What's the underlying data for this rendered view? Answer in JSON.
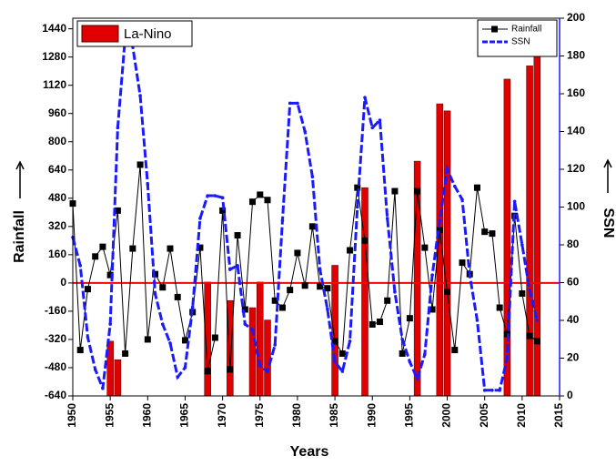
{
  "chart_data": {
    "type": "combo",
    "xlabel": "Years",
    "ylabel": "Rainfall",
    "y2label": "SSN",
    "x": [
      1950,
      1951,
      1952,
      1953,
      1954,
      1955,
      1956,
      1957,
      1958,
      1959,
      1960,
      1961,
      1962,
      1963,
      1964,
      1965,
      1966,
      1967,
      1968,
      1969,
      1970,
      1971,
      1972,
      1973,
      1974,
      1975,
      1976,
      1977,
      1978,
      1979,
      1980,
      1981,
      1982,
      1983,
      1984,
      1985,
      1986,
      1987,
      1988,
      1989,
      1990,
      1991,
      1992,
      1993,
      1994,
      1995,
      1996,
      1997,
      1998,
      1999,
      2000,
      2001,
      2002,
      2003,
      2004,
      2005,
      2006,
      2007,
      2008,
      2009,
      2010,
      2011,
      2012
    ],
    "series": [
      {
        "name": "La-Nino",
        "type": "bar",
        "color": "#e00000",
        "x": [
          1955,
          1956,
          1968,
          1971,
          1974,
          1975,
          1976,
          1985,
          1989,
          1996,
          1999,
          2000,
          2008,
          2011,
          2012
        ],
        "values": [
          -330,
          -435,
          5,
          -100,
          -140,
          5,
          -210,
          100,
          540,
          690,
          1015,
          975,
          1155,
          1230,
          1300
        ]
      },
      {
        "name": "Rainfall",
        "type": "line",
        "color": "#000000",
        "marker": "square",
        "values": [
          450,
          -380,
          -35,
          150,
          205,
          45,
          410,
          -400,
          195,
          670,
          -320,
          50,
          -25,
          195,
          -80,
          -325,
          -165,
          200,
          -500,
          -310,
          410,
          -490,
          270,
          -150,
          460,
          500,
          470,
          -100,
          -140,
          -40,
          170,
          -15,
          320,
          -20,
          -30,
          -330,
          -400,
          185,
          540,
          240,
          -235,
          -220,
          -100,
          520,
          -400,
          -200,
          520,
          200,
          -150,
          300,
          -50,
          -380,
          115,
          50,
          540,
          290,
          280,
          -140,
          -290,
          380,
          -60,
          -300,
          -330
        ]
      },
      {
        "name": "SSN",
        "type": "line",
        "color": "#1a1aff",
        "marker": "dot",
        "axis": "y2",
        "values": [
          84,
          69,
          31,
          14,
          4,
          38,
          142,
          190,
          185,
          159,
          112,
          54,
          38,
          28,
          10,
          15,
          47,
          94,
          106,
          106,
          105,
          67,
          69,
          38,
          35,
          16,
          13,
          27,
          93,
          155,
          155,
          140,
          116,
          67,
          46,
          18,
          13,
          29,
          100,
          158,
          142,
          146,
          94,
          55,
          30,
          18,
          9,
          22,
          64,
          93,
          120,
          111,
          104,
          64,
          40,
          3,
          3,
          3,
          20,
          103,
          80,
          56,
          40
        ]
      }
    ],
    "xlim": [
      1950,
      2015
    ],
    "xticks": [
      1950,
      1955,
      1960,
      1965,
      1970,
      1975,
      1980,
      1985,
      1990,
      1995,
      2000,
      2005,
      2010,
      2015
    ],
    "ylim": [
      -640,
      1500
    ],
    "yticks": [
      -640,
      -480,
      -320,
      -160,
      0,
      160,
      320,
      480,
      640,
      800,
      960,
      1120,
      1280,
      1440
    ],
    "y2lim": [
      0,
      200
    ],
    "y2ticks": [
      0,
      20,
      40,
      60,
      80,
      100,
      120,
      140,
      160,
      180,
      200
    ],
    "reference_line": 0,
    "reference_color": "#ff0000"
  }
}
